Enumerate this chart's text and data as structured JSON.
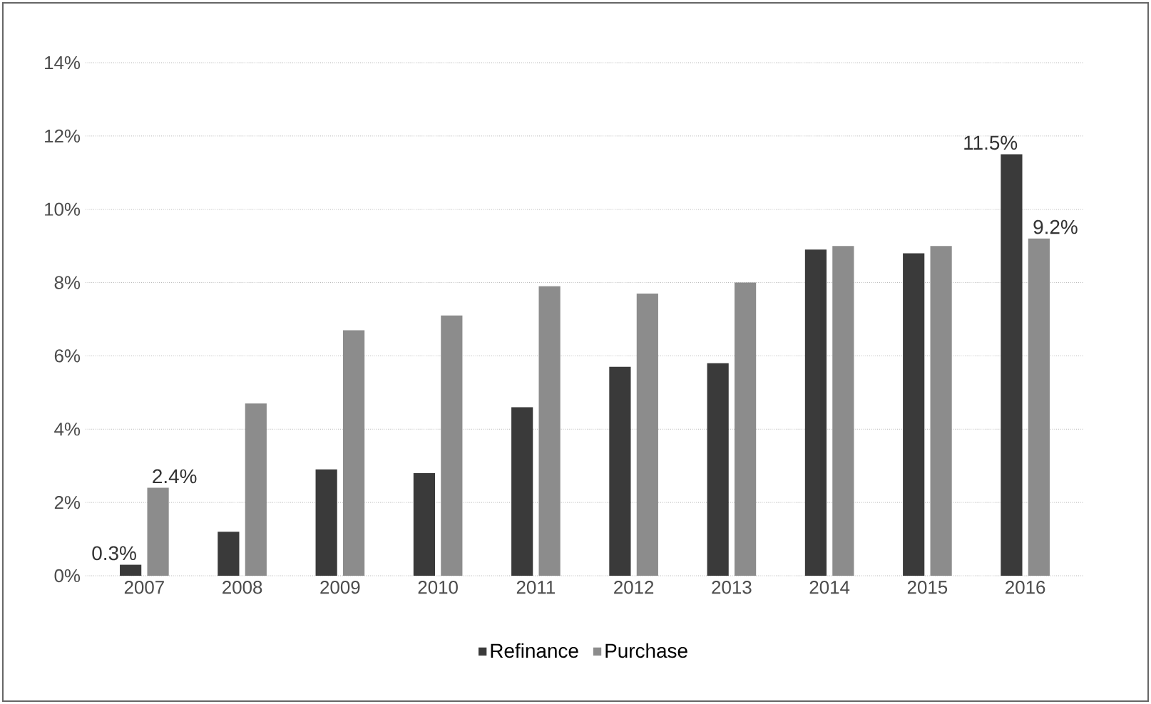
{
  "chart_data": {
    "type": "bar",
    "categories": [
      "2007",
      "2008",
      "2009",
      "2010",
      "2011",
      "2012",
      "2013",
      "2014",
      "2015",
      "2016"
    ],
    "series": [
      {
        "name": "Refinance",
        "color": "#3a3a3a",
        "values": [
          0.3,
          1.2,
          2.9,
          2.8,
          4.6,
          5.7,
          5.8,
          8.9,
          8.8,
          11.5
        ],
        "value_labels": [
          "0.3%",
          null,
          null,
          null,
          null,
          null,
          null,
          null,
          null,
          "11.5%"
        ]
      },
      {
        "name": "Purchase",
        "color": "#8c8c8c",
        "values": [
          2.4,
          4.7,
          6.7,
          7.1,
          7.9,
          7.7,
          8.0,
          9.0,
          9.0,
          9.2
        ],
        "value_labels": [
          "2.4%",
          null,
          null,
          null,
          null,
          null,
          null,
          null,
          null,
          "9.2%"
        ]
      }
    ],
    "ylim": [
      0,
      14
    ],
    "yticks": [
      {
        "value": 0,
        "label": "0%"
      },
      {
        "value": 2,
        "label": "2%"
      },
      {
        "value": 4,
        "label": "4%"
      },
      {
        "value": 6,
        "label": "6%"
      },
      {
        "value": 8,
        "label": "8%"
      },
      {
        "value": 10,
        "label": "10%"
      },
      {
        "value": 12,
        "label": "12%"
      },
      {
        "value": 14,
        "label": "14%"
      }
    ],
    "grid": "y",
    "legend": "bottom"
  }
}
